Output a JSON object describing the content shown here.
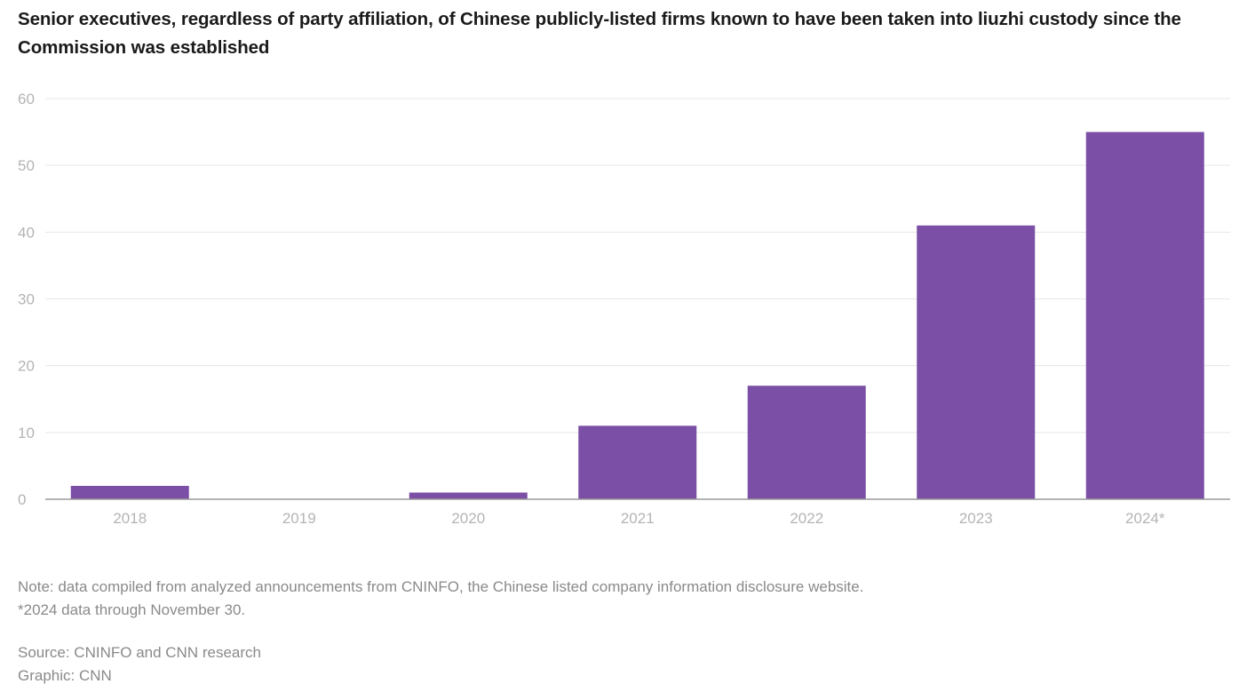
{
  "colors": {
    "bar": "#7b4fa5",
    "grid": "#e6e6e6",
    "tick_text": "#b4b4b4",
    "note_text": "#8a8a8a"
  },
  "notes": {
    "note": "Note: data compiled from analyzed announcements from CNINFO, the Chinese listed company information disclosure website.",
    "footnote": "*2024 data through November 30.",
    "source": "Source: CNINFO and CNN research",
    "graphic": "Graphic: CNN"
  },
  "chart_data": {
    "type": "bar",
    "title": "Senior executives, regardless of party affiliation, of Chinese publicly-listed firms known to have been taken into liuzhi custody since the Commission was established",
    "categories": [
      "2018",
      "2019",
      "2020",
      "2021",
      "2022",
      "2023",
      "2024*"
    ],
    "values": [
      2,
      0,
      1,
      11,
      17,
      41,
      55
    ],
    "xlabel": "",
    "ylabel": "",
    "ylim": [
      0,
      60
    ],
    "yticks": [
      "0",
      "10",
      "20",
      "30",
      "40",
      "50",
      "60"
    ],
    "grid": true,
    "legend": "none"
  }
}
